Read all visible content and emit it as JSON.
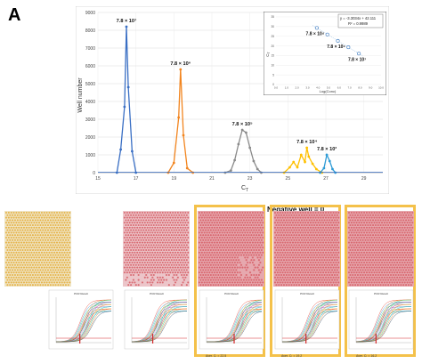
{
  "panel_label": "A",
  "chart_data": [
    {
      "type": "line",
      "ylabel": "Well number",
      "xlabel": "C_T",
      "xlim": [
        15,
        30
      ],
      "ylim": [
        0,
        9000
      ],
      "xticks": [
        "15",
        "17",
        "19",
        "21",
        "23",
        "25",
        "27",
        "29"
      ],
      "yticks": [
        "0",
        "1000",
        "2000",
        "3000",
        "4000",
        "5000",
        "6000",
        "7000",
        "8000",
        "9000"
      ],
      "grid": true,
      "series": [
        {
          "color": "#3a6fc4",
          "label": "7.8 × 10⁷",
          "x": [
            16.0,
            16.2,
            16.4,
            16.5,
            16.6,
            16.8,
            17.0
          ],
          "y": [
            0,
            1300,
            3700,
            8200,
            4800,
            1200,
            0
          ]
        },
        {
          "color": "#f2851f",
          "label": "7.8 × 10⁶",
          "x": [
            18.7,
            19.0,
            19.25,
            19.35,
            19.5,
            19.7,
            20.0
          ],
          "y": [
            0,
            550,
            3100,
            5800,
            2100,
            250,
            0
          ]
        },
        {
          "color": "#8a8a8a",
          "label": "7.8 × 10⁵",
          "x": [
            21.7,
            22.0,
            22.2,
            22.4,
            22.6,
            22.8,
            23.0,
            23.2,
            23.4,
            23.6
          ],
          "y": [
            0,
            120,
            700,
            1600,
            2400,
            2250,
            1400,
            650,
            200,
            0
          ]
        },
        {
          "color": "#ffc000",
          "label": "7.8 × 10⁴",
          "x": [
            24.8,
            25.1,
            25.3,
            25.5,
            25.7,
            25.9,
            26.0,
            26.1,
            26.3,
            26.5,
            26.8
          ],
          "y": [
            0,
            300,
            600,
            300,
            1000,
            600,
            1400,
            900,
            500,
            200,
            0
          ]
        },
        {
          "color": "#2e9bd6",
          "label": "7.8 × 10³",
          "x": [
            26.7,
            26.9,
            27.05,
            27.2,
            27.35,
            27.5
          ],
          "y": [
            0,
            250,
            1000,
            650,
            200,
            0
          ]
        }
      ]
    },
    {
      "type": "scatter",
      "ylabel": "C_T",
      "xlabel": "Log(Conc)",
      "xlim": [
        0,
        10
      ],
      "ylim": [
        0,
        35
      ],
      "equation": "y = -3.3034x + 42.111",
      "r2": "R² = 0.9989",
      "x": [
        3.89,
        4.89,
        5.89,
        6.89,
        7.89
      ],
      "y": [
        29.3,
        25.9,
        22.6,
        19.3,
        16.0
      ]
    }
  ],
  "negative_well_label": "Negative well = 0",
  "caption_1": "Aver. Cₜ = 22.5",
  "caption_2": "Aver. Cₜ = 19.2",
  "caption_3": "Aver. Cₜ = 16.2",
  "wells_top": [
    {
      "dot_color": "#e6b44a",
      "bg": "#efe4c4"
    },
    {
      "dot_color": "#d96a72",
      "bg": "#ecc5c9"
    },
    {
      "dot_color": "#d9676f",
      "bg": "#e6a8ae"
    },
    {
      "dot_color": "#d9676f",
      "bg": "#e6a8ae"
    },
    {
      "dot_color": "#d9676f",
      "bg": "#e6a8ae"
    }
  ],
  "qpcr_panel_title": "PCR Result"
}
